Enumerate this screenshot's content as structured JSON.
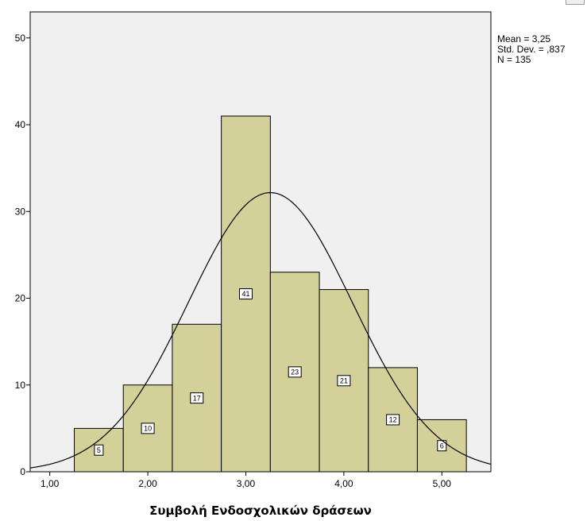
{
  "chart_data": {
    "type": "bar",
    "subtype": "histogram",
    "xlabel": "Συμβολή Ενδοσχολικών δράσεων",
    "ylabel": "",
    "xlim": [
      0.8,
      5.5
    ],
    "ylim": [
      0,
      53
    ],
    "xticks": [
      1.0,
      2.0,
      3.0,
      4.0,
      5.0
    ],
    "xtick_labels": [
      "1,00",
      "2,00",
      "3,00",
      "4,00",
      "5,00"
    ],
    "yticks": [
      0,
      10,
      20,
      30,
      40,
      50
    ],
    "ytick_labels": [
      "0",
      "10",
      "20",
      "30",
      "40",
      "50"
    ],
    "bins": [
      {
        "start": 1.25,
        "end": 1.75,
        "count": 5,
        "label": "5"
      },
      {
        "start": 1.75,
        "end": 2.25,
        "count": 10,
        "label": "10"
      },
      {
        "start": 2.25,
        "end": 2.75,
        "count": 17,
        "label": "17"
      },
      {
        "start": 2.75,
        "end": 3.25,
        "count": 41,
        "label": "41"
      },
      {
        "start": 3.25,
        "end": 3.75,
        "count": 23,
        "label": "23"
      },
      {
        "start": 3.75,
        "end": 4.25,
        "count": 21,
        "label": "21"
      },
      {
        "start": 4.25,
        "end": 4.75,
        "count": 12,
        "label": "12"
      },
      {
        "start": 4.75,
        "end": 5.25,
        "count": 6,
        "label": "6"
      }
    ],
    "normal_curve": {
      "mean": 3.25,
      "std": 0.837,
      "n": 135,
      "bin_width": 0.5
    },
    "stats_text": [
      "Mean = 3,25",
      "Std. Dev. = ,837",
      "N = 135"
    ],
    "colors": {
      "bar_fill": "#d3d09a",
      "bar_stroke": "#000000",
      "plot_bg": "#f0f0f0",
      "curve": "#000000"
    },
    "grid": false,
    "legend": "none"
  }
}
